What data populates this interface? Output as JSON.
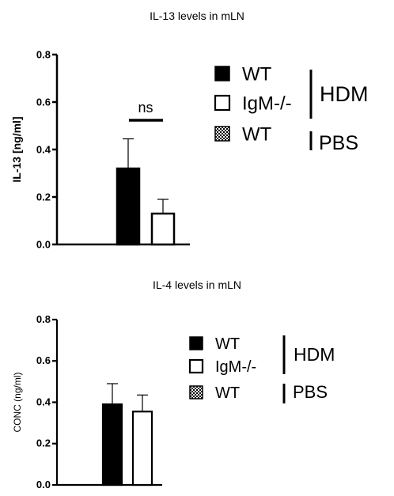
{
  "chart_data": [
    {
      "type": "bar",
      "title": "IL-13 levels in mLN",
      "ylabel": "IL-13 [ng/ml]",
      "ylim": [
        0,
        0.8
      ],
      "yticks": [
        "0.0",
        "0.2",
        "0.4",
        "0.6",
        "0.8"
      ],
      "categories": [
        "WT",
        "IgM-/-"
      ],
      "values": [
        0.32,
        0.13
      ],
      "errors": [
        0.125,
        0.06
      ],
      "fills": [
        "#000000",
        "#ffffff"
      ],
      "significance": {
        "label": "ns",
        "between": [
          "WT",
          "IgM-/-"
        ]
      },
      "legend": {
        "entries": [
          {
            "label": "WT",
            "swatch": "solid-black"
          },
          {
            "label": "IgM-/-",
            "swatch": "open-white"
          },
          {
            "label": "WT",
            "swatch": "checkered"
          }
        ],
        "groups": [
          {
            "label": "HDM",
            "entries": [
              0,
              1
            ]
          },
          {
            "label": "PBS",
            "entries": [
              2
            ]
          }
        ],
        "placement": "right"
      }
    },
    {
      "type": "bar",
      "title": "IL-4 levels in mLN",
      "ylabel": "CONC (ng/ml)",
      "ylim": [
        0,
        0.8
      ],
      "yticks": [
        "0.0",
        "0.2",
        "0.4",
        "0.6",
        "0.8"
      ],
      "categories": [
        "WT",
        "IgM-/-"
      ],
      "values": [
        0.39,
        0.355
      ],
      "errors": [
        0.1,
        0.08
      ],
      "fills": [
        "#000000",
        "#ffffff"
      ],
      "legend": {
        "entries": [
          {
            "label": "WT",
            "swatch": "solid-black"
          },
          {
            "label": "IgM-/-",
            "swatch": "open-white"
          },
          {
            "label": "WT",
            "swatch": "checkered"
          }
        ],
        "groups": [
          {
            "label": "HDM",
            "entries": [
              0,
              1
            ]
          },
          {
            "label": "PBS",
            "entries": [
              2
            ]
          }
        ],
        "placement": "right"
      }
    }
  ]
}
